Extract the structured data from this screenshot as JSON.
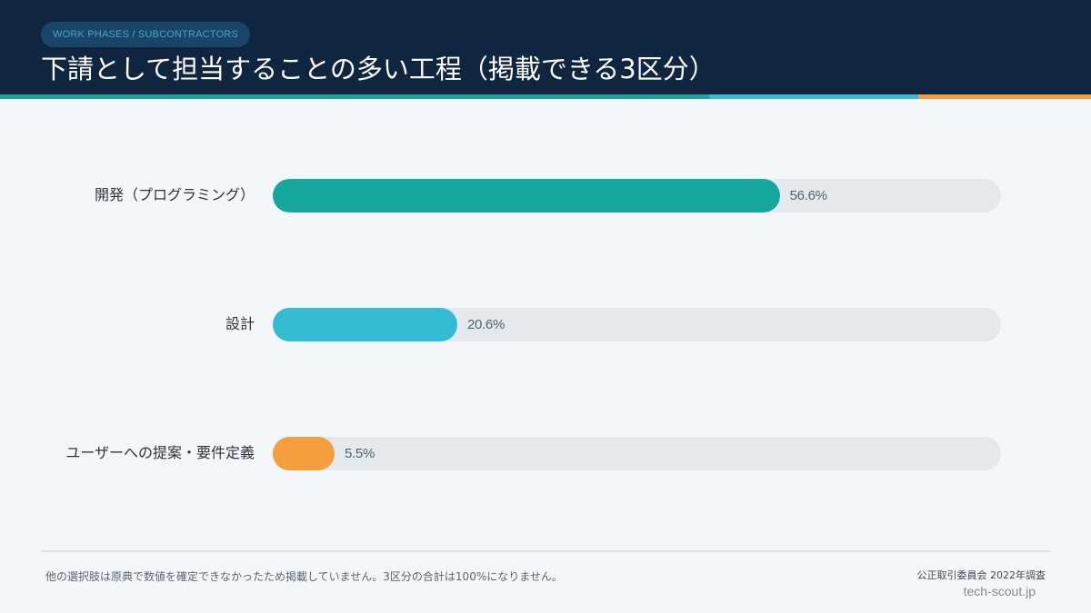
{
  "header": {
    "eyebrow": "WORK PHASES / SUBCONTRACTORS",
    "title": "下請として担当することの多い工程（掲載できる3区分）"
  },
  "colors": {
    "header_bg": "#10253f",
    "track": "#e3e9ed",
    "bar_1": "#16a89e",
    "bar_2": "#35bcd5",
    "bar_3": "#f59e3d"
  },
  "chart_data": {
    "type": "bar",
    "orientation": "horizontal",
    "categories": [
      "開発（プログラミング）",
      "設計",
      "ユーザーへの提案・要件定義"
    ],
    "values": [
      56.6,
      20.6,
      5.5
    ],
    "value_labels": [
      "56.6%",
      "20.6%",
      "5.5%"
    ],
    "colors": [
      "#16a89e",
      "#35bcd5",
      "#f59e3d"
    ],
    "xlim": [
      0,
      100
    ],
    "unit": "%",
    "title": "下請として担当することの多い工程（掲載できる3区分）",
    "grid": false,
    "legend": "none"
  },
  "footer": {
    "note": "他の選択肢は原典で数値を確定できなかったため掲載していません。3区分の合計は100%になりません。",
    "source": "公正取引委員会 2022年調査",
    "site": "tech-scout.jp"
  }
}
